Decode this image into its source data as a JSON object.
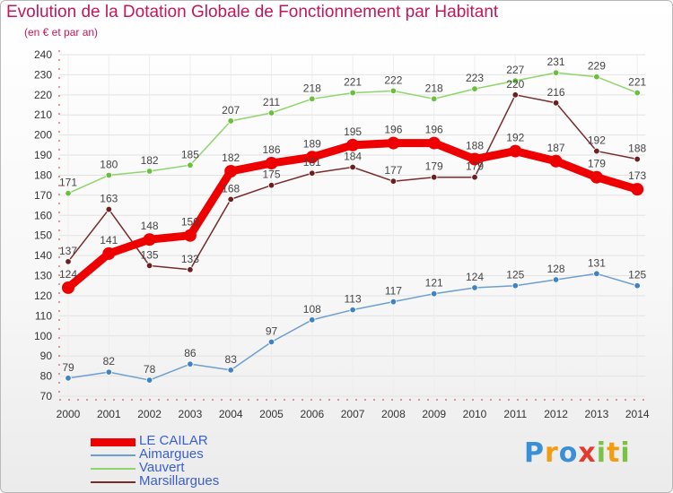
{
  "title": "Evolution de la Dotation Globale de Fonctionnement par Habitant",
  "subtitle": "(en € et par an)",
  "logo": {
    "text": "Proxiti",
    "letters": [
      "P",
      "r",
      "o",
      "x",
      "i",
      "t",
      "i"
    ],
    "colors": [
      "#3a8fd6",
      "#f39c12",
      "#3a8fd6",
      "#e23b2e",
      "#7cc242",
      "#f39c12",
      "#7cc242"
    ]
  },
  "chart_data": {
    "type": "line",
    "categories": [
      "2000",
      "2001",
      "2002",
      "2003",
      "2004",
      "2005",
      "2006",
      "2007",
      "2008",
      "2009",
      "2010",
      "2011",
      "2012",
      "2013",
      "2014"
    ],
    "y_ticks": [
      "70",
      "80",
      "90",
      "100",
      "110",
      "120",
      "130",
      "140",
      "150",
      "160",
      "170",
      "180",
      "190",
      "200",
      "210",
      "220",
      "230",
      "240"
    ],
    "ylim": [
      70,
      240
    ],
    "grid": true,
    "legend_position": "bottom-left",
    "series": [
      {
        "name": "Vauvert",
        "color": "#8fd66a",
        "marker": "#6abf3f",
        "values": [
          171,
          180,
          182,
          185,
          207,
          211,
          218,
          221,
          222,
          218,
          223,
          227,
          231,
          229,
          221
        ],
        "labels": [
          "171",
          "180",
          "182",
          "185",
          "207",
          "211",
          "218",
          "221",
          "222",
          "218",
          "223",
          "227",
          "231",
          "229",
          "221"
        ]
      },
      {
        "name": "Aimargues",
        "color": "#6c9fcf",
        "marker": "#3f83c4",
        "values": [
          79,
          82,
          78,
          86,
          83,
          97,
          108,
          113,
          117,
          121,
          124,
          125,
          128,
          131,
          125
        ],
        "labels": [
          "79",
          "82",
          "78",
          "86",
          "83",
          "97",
          "108",
          "113",
          "117",
          "121",
          "124",
          "125",
          "128",
          "131",
          "125"
        ]
      },
      {
        "name": "Marsillargues",
        "color": "#7a2a2a",
        "marker": "#6b1f1f",
        "values": [
          137,
          163,
          135,
          133,
          168,
          175,
          181,
          184,
          177,
          179,
          179,
          220,
          216,
          192,
          188
        ],
        "labels": [
          "137",
          "163",
          "135",
          "133",
          "168",
          "175",
          "181",
          "184",
          "177",
          "179",
          "179",
          "220",
          "216",
          "192",
          "188"
        ]
      },
      {
        "name": "LE CAILAR",
        "color": "#ee0000",
        "marker": "#ee0000",
        "values": [
          124,
          141,
          148,
          150,
          182,
          186,
          189,
          195,
          196,
          196,
          188,
          192,
          187,
          179,
          173
        ],
        "labels": [
          "124",
          "141",
          "148",
          "150",
          "182",
          "186",
          "189",
          "195",
          "196",
          "196",
          "188",
          "192",
          "187",
          "179",
          "173"
        ]
      }
    ],
    "legend": [
      "LE CAILAR",
      "Aimargues",
      "Vauvert",
      "Marsillargues"
    ]
  }
}
